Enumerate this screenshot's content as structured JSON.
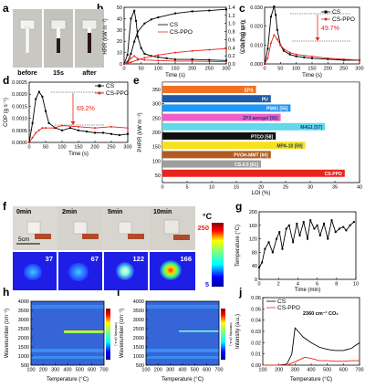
{
  "panel_labels": [
    "a",
    "b",
    "c",
    "d",
    "e",
    "f",
    "g",
    "h",
    "i",
    "j"
  ],
  "panel_a": {
    "captions": [
      "before",
      "15s",
      "after"
    ]
  },
  "chart_data": [
    {
      "panel": "b",
      "type": "line",
      "xlabel": "Time (s)",
      "ylabel_left": "HRR (kW m⁻²)",
      "ylabel_right": "THR (MJ m⁻²)",
      "xlim": [
        0,
        300
      ],
      "ylim_left": [
        0,
        50
      ],
      "ylim_right": [
        0,
        1.4
      ],
      "x_ticks": [
        0,
        50,
        100,
        150,
        200,
        250,
        300
      ],
      "y_ticks_left": [
        0,
        10,
        20,
        30,
        40,
        50
      ],
      "y_ticks_right": [
        0,
        0.2,
        0.4,
        0.6,
        0.8,
        1.0,
        1.2,
        1.4
      ],
      "legend": "top-center",
      "series": [
        {
          "name": "CS",
          "color": "#000000",
          "axis": "left",
          "x": [
            0,
            10,
            20,
            30,
            35,
            40,
            50,
            60,
            80,
            100,
            125,
            150,
            200,
            250,
            300
          ],
          "y": [
            0,
            8,
            40,
            47,
            38,
            24,
            14,
            9,
            7,
            6,
            5,
            4,
            4,
            3.5,
            3
          ]
        },
        {
          "name": "CS",
          "color": "#000000",
          "axis": "right",
          "x": [
            0,
            10,
            20,
            30,
            40,
            60,
            80,
            100,
            150,
            200,
            250,
            300
          ],
          "y": [
            0,
            0.05,
            0.25,
            0.55,
            0.8,
            1.0,
            1.1,
            1.15,
            1.25,
            1.3,
            1.32,
            1.35
          ]
        },
        {
          "name": "CS-PPO",
          "color": "#e8241c",
          "axis": "left",
          "x": [
            0,
            10,
            20,
            30,
            40,
            60,
            100,
            150,
            200,
            250,
            300
          ],
          "y": [
            0,
            1,
            5,
            7,
            4.5,
            3.5,
            3,
            2.5,
            2.5,
            2.2,
            2
          ]
        },
        {
          "name": "CS-PPO",
          "color": "#e8241c",
          "axis": "right",
          "x": [
            0,
            20,
            40,
            60,
            100,
            150,
            200,
            250,
            300
          ],
          "y": [
            0,
            0.04,
            0.1,
            0.15,
            0.22,
            0.28,
            0.32,
            0.35,
            0.38
          ]
        }
      ]
    },
    {
      "panel": "c",
      "type": "line",
      "xlabel": "Time (s)",
      "ylabel": "CO₂P (g s⁻¹)",
      "xlim": [
        0,
        300
      ],
      "ylim": [
        0,
        0.03
      ],
      "x_ticks": [
        0,
        50,
        100,
        150,
        200,
        250,
        300
      ],
      "y_ticks": [
        0.0,
        0.01,
        0.02,
        0.03
      ],
      "legend": "top-right",
      "annotation": "49.7%",
      "series": [
        {
          "name": "CS",
          "color": "#000000",
          "x": [
            0,
            10,
            20,
            30,
            35,
            40,
            50,
            60,
            80,
            100,
            125,
            150,
            200,
            250,
            300
          ],
          "y": [
            0,
            0.008,
            0.025,
            0.0305,
            0.026,
            0.018,
            0.01,
            0.007,
            0.005,
            0.004,
            0.0035,
            0.003,
            0.0025,
            0.002,
            0.002
          ]
        },
        {
          "name": "CS-PPO",
          "color": "#e8241c",
          "x": [
            0,
            10,
            20,
            30,
            40,
            50,
            60,
            80,
            100,
            150,
            200,
            250,
            300
          ],
          "y": [
            0,
            0.003,
            0.011,
            0.0153,
            0.013,
            0.01,
            0.008,
            0.006,
            0.005,
            0.004,
            0.003,
            0.0025,
            0.002
          ]
        }
      ]
    },
    {
      "panel": "d",
      "type": "line",
      "xlabel": "Time (s)",
      "ylabel": "COP (g s⁻¹)",
      "xlim": [
        0,
        300
      ],
      "ylim": [
        0,
        0.0025
      ],
      "x_ticks": [
        0,
        50,
        100,
        150,
        200,
        250,
        300
      ],
      "y_ticks": [
        0.0,
        0.0005,
        0.001,
        0.0015,
        0.002,
        0.0025
      ],
      "legend": "top-right",
      "annotation": "69.2%",
      "series": [
        {
          "name": "CS",
          "color": "#000000",
          "x": [
            0,
            10,
            20,
            30,
            40,
            50,
            60,
            80,
            100,
            125,
            150,
            175,
            200,
            225,
            250,
            275,
            300
          ],
          "y": [
            0,
            0.0008,
            0.0018,
            0.0021,
            0.0019,
            0.0013,
            0.0008,
            0.0006,
            0.0005,
            0.0006,
            0.0005,
            0.00045,
            0.0004,
            0.0004,
            0.00035,
            0.0003,
            0.00035
          ]
        },
        {
          "name": "CS-PPO",
          "color": "#e8241c",
          "x": [
            0,
            10,
            20,
            30,
            40,
            50,
            75,
            100,
            150,
            200,
            250,
            300
          ],
          "y": [
            0,
            0.0002,
            0.0004,
            0.0005,
            0.0006,
            0.0006,
            0.0006,
            0.0007,
            0.00065,
            0.0006,
            0.00065,
            0.0006
          ]
        }
      ]
    },
    {
      "panel": "e",
      "type": "bar",
      "orientation": "horizontal",
      "xlabel": "LOI (%)",
      "ylabel": "PHRR (kW m⁻²)",
      "x_ticks": [
        0,
        5,
        10,
        15,
        20,
        25,
        30,
        35,
        40
      ],
      "y_ticks": [
        50,
        100,
        150,
        200,
        250,
        300,
        350
      ],
      "xlim": [
        0,
        40
      ],
      "categories": [
        "EPS",
        "PU",
        "P5M1 [55]",
        "ZP3 aerogel [56]",
        "M4G1 [57]",
        "PTCO [58]",
        "MPA-10 [59]",
        "PVOH-MMT [60]",
        "CS-0.5 [61]",
        "CS-PPO"
      ],
      "values": [
        19,
        22,
        26,
        24,
        33,
        23,
        29,
        22,
        20,
        37
      ],
      "colors": [
        "#f36f21",
        "#1e5aa8",
        "#2196f3",
        "#f25cc6",
        "#62d8e8",
        "#111111",
        "#f7e11e",
        "#b35a1f",
        "#9e9e9e",
        "#e8241c"
      ]
    },
    {
      "panel": "g",
      "type": "line",
      "xlabel": "Time (min)",
      "ylabel": "Temperature (°C)",
      "xlim": [
        0,
        10
      ],
      "ylim": [
        0,
        200
      ],
      "x_ticks": [
        0,
        2,
        4,
        6,
        8,
        10
      ],
      "y_ticks": [
        0,
        40,
        80,
        120,
        160,
        200
      ],
      "series": [
        {
          "name": "",
          "color": "#000000",
          "x": [
            0,
            0.3,
            0.6,
            1.0,
            1.4,
            1.8,
            2.1,
            2.4,
            2.8,
            3.1,
            3.5,
            3.9,
            4.2,
            4.6,
            5.0,
            5.3,
            5.7,
            6.0,
            6.3,
            6.7,
            7.1,
            7.5,
            7.9,
            8.3,
            8.7,
            9.0,
            9.4,
            9.8
          ],
          "y": [
            35,
            50,
            90,
            110,
            80,
            120,
            140,
            90,
            150,
            160,
            110,
            165,
            130,
            170,
            120,
            175,
            150,
            160,
            130,
            165,
            120,
            175,
            140,
            150,
            155,
            145,
            160,
            170
          ]
        }
      ]
    },
    {
      "panel": "j",
      "type": "line",
      "xlabel": "Temperature (°C)",
      "ylabel": "Intensity (a.u.)",
      "xlim": [
        100,
        700
      ],
      "ylim": [
        0,
        0.06
      ],
      "x_ticks": [
        100,
        200,
        300,
        400,
        500,
        600,
        700
      ],
      "y_ticks": [
        0.0,
        0.01,
        0.02,
        0.03,
        0.04,
        0.05,
        0.06
      ],
      "legend": "top-left",
      "annotation": "2360 cm⁻¹ CO₂",
      "series": [
        {
          "name": "CS",
          "color": "#000000",
          "x": [
            100,
            200,
            250,
            280,
            300,
            320,
            350,
            400,
            450,
            500,
            550,
            600,
            650,
            700
          ],
          "y": [
            0,
            0,
            0.001,
            0.01,
            0.033,
            0.03,
            0.025,
            0.02,
            0.016,
            0.014,
            0.013,
            0.013,
            0.015,
            0.02
          ]
        },
        {
          "name": "CS-PPO",
          "color": "#e8241c",
          "x": [
            100,
            200,
            250,
            280,
            300,
            330,
            360,
            400,
            450,
            500,
            550,
            600,
            650,
            700
          ],
          "y": [
            0,
            0,
            0,
            0.002,
            0.003,
            0.005,
            0.007,
            0.006,
            0.004,
            0.004,
            0.0035,
            0.0035,
            0.004,
            0.004
          ]
        }
      ]
    }
  ],
  "panel_b_text": {
    "legend": [
      "CS",
      "CS-PPO"
    ],
    "xlabel": "Time (s)",
    "ylabel_left": "HRR (kW m⁻²)",
    "ylabel_right": "THR (MJ m⁻²)"
  },
  "panel_c_text": {
    "legend": [
      "CS",
      "CS-PPO"
    ],
    "xlabel": "Time (s)",
    "ylabel": "CO₂P (g s⁻¹)",
    "annotation": "49.7%"
  },
  "panel_d_text": {
    "legend": [
      "CS",
      "CS-PPO"
    ],
    "xlabel": "Time (s)",
    "ylabel": "COP (g s⁻¹)",
    "annotation": "69.2%"
  },
  "panel_e_text": {
    "xlabel": "LOI (%)",
    "ylabel": "PHRR (kW m⁻²)"
  },
  "panel_f": {
    "times": [
      "0min",
      "2min",
      "5min",
      "10min"
    ],
    "scale_label": "5cm",
    "temperatures": [
      "37",
      "67",
      "122",
      "166"
    ],
    "colorbar_unit": "°C",
    "colorbar_max": "250",
    "colorbar_min": "5"
  },
  "panel_g_text": {
    "xlabel": "Time (min)",
    "ylabel": "Temperature (°C)"
  },
  "panel_h": {
    "xlabel": "Temperature (°C)",
    "ylabel": "Wavenumber (cm⁻¹)",
    "x_ticks": [
      "100",
      "200",
      "300",
      "400",
      "500",
      "600",
      "700"
    ],
    "y_ticks": [
      "500",
      "1000",
      "1500",
      "2000",
      "2500",
      "3000",
      "3500",
      "4000"
    ],
    "colorbar_label": "Intensity (a.u.)"
  },
  "panel_i": {
    "xlabel": "Temperature (°C)",
    "ylabel": "Wavenumber (cm⁻¹)",
    "x_ticks": [
      "100",
      "200",
      "300",
      "400",
      "500",
      "600",
      "700"
    ],
    "y_ticks": [
      "500",
      "1000",
      "1500",
      "2000",
      "2500",
      "3000",
      "3500",
      "4000"
    ],
    "colorbar_label": "Intensity (a.u.)"
  },
  "panel_j_text": {
    "legend": [
      "CS",
      "CS-PPO"
    ],
    "xlabel": "Temperature (°C)",
    "ylabel": "Intensity (a.u.)",
    "annotation": "2360 cm⁻¹ CO₂"
  }
}
